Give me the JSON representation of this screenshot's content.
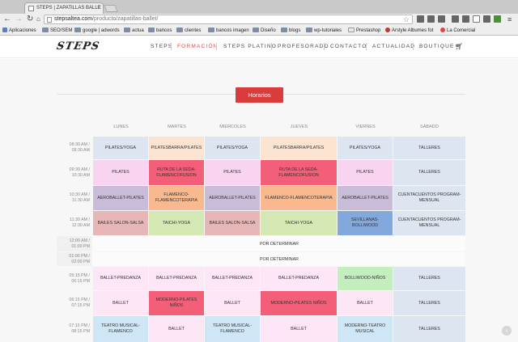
{
  "browser": {
    "tab_title": "STEPS | ZAPATILLAS BALLE",
    "url_host": "stepsaltea.com",
    "url_path": "/producto/zapatillas-ballet/",
    "bookmarks": [
      "Aplicaciones",
      "SEO/SEM",
      "google | adwords",
      "actua",
      "bancos",
      "clientes",
      "bancos imagen",
      "Diseño",
      "blogs",
      "wp-tutoriales",
      "Prestashop",
      "Arstyle Albumes fot",
      "La Comercial"
    ]
  },
  "site": {
    "logo": "STEPS",
    "nav": [
      "STEPS",
      "FORMACIÓN",
      "STEPS PLATINO",
      "PROFESORADO",
      "CONTACTO",
      "ACTUALIDAD",
      "BOUTIQUE"
    ],
    "active_nav": "FORMACIÓN",
    "schedule_button": "Horarios"
  },
  "schedule": {
    "days": [
      "LUNES",
      "MARTES",
      "MIERCOLES",
      "JUEVES",
      "VIERNES",
      "SÁBADO"
    ],
    "slots": [
      {
        "time": [
          "08:30 AM /",
          "09:30 AM"
        ],
        "cells": [
          {
            "t": "PILATES/YOGA",
            "c": "#dde6f0"
          },
          {
            "t": "PILATESBARRA/PILATES",
            "c": "#fce4d0"
          },
          {
            "t": "PILATES/YOGA",
            "c": "#dde6f0"
          },
          {
            "t": "PILATESBARRA/PILATES",
            "c": "#fce4d0"
          },
          {
            "t": "PILATES/YOGA",
            "c": "#dde6f0"
          },
          {
            "t": "TALLERES",
            "c": "#dde6f0"
          }
        ]
      },
      {
        "time": [
          "09:30 AM /",
          "10:30 AM"
        ],
        "cells": [
          {
            "t": "PILATES",
            "c": "#f9d4f0"
          },
          {
            "t": "RUTA DE LA SEDA-FLAMENCOFUSION",
            "c": "#f35f78"
          },
          {
            "t": "PILATES",
            "c": "#f9d4f0"
          },
          {
            "t": "RUTA DE LA SEDA-FLAMENCOFUSION",
            "c": "#f35f78"
          },
          {
            "t": "PILATES",
            "c": "#f9d4f0"
          },
          {
            "t": "TALLERES",
            "c": "#dde6f0"
          }
        ]
      },
      {
        "time": [
          "10:30 AM /",
          "11:30 AM"
        ],
        "cells": [
          {
            "t": "AEROBALLET-PILATES",
            "c": "#c8bcd9"
          },
          {
            "t": "FLAMENCO-FLAMENCOTERAPIA",
            "c": "#f9b98f"
          },
          {
            "t": "AEROBALLET-PILATES",
            "c": "#c8bcd9"
          },
          {
            "t": "FLAMENCO-FLAMENCOTERAPIA",
            "c": "#f9b98f"
          },
          {
            "t": "AEROBALLET-PILATES",
            "c": "#c8bcd9"
          },
          {
            "t": "CUENTACUENTOS PROGRAM-MENSUAL",
            "c": "#dde6f0"
          }
        ]
      },
      {
        "time": [
          "11:30 AM /",
          "12:30 AM"
        ],
        "cells": [
          {
            "t": "BAILES SALON-SALSA",
            "c": "#e7b6b6"
          },
          {
            "t": "TAICHI-YOGA",
            "c": "#d4e8b4"
          },
          {
            "t": "BAILES SALON-SALSA",
            "c": "#e7b6b6"
          },
          {
            "t": "TAICHI-YOGA",
            "c": "#d4e8b4"
          },
          {
            "t": "SEVILLANAS-BOLLIWOOD",
            "c": "#83a8db"
          },
          {
            "t": "CUENTACUENTOS PROGRAM-MENSUAL",
            "c": "#dde6f0"
          }
        ]
      },
      {
        "time": [
          "12:00 AM /",
          "01:00 PM"
        ],
        "wide": "POR DETERMINAR"
      },
      {
        "time": [
          "01:00 PM /",
          "02:00 PM"
        ],
        "wide": "POR DETERMINAR"
      },
      {
        "time": [
          "05:15 PM /",
          "06:15 PM"
        ],
        "cells": [
          {
            "t": "BALLET-PREDANZA",
            "c": "#fde6f6"
          },
          {
            "t": "BALLET-PREDANZA",
            "c": "#fde6f6"
          },
          {
            "t": "BALLET-PREDANZA",
            "c": "#fde6f6"
          },
          {
            "t": "BALLET-PREDANZA",
            "c": "#fde6f6"
          },
          {
            "t": "BOLLIWOOD-NIÑOS",
            "c": "#c2efbd"
          },
          {
            "t": "TALLERES",
            "c": "#dde6f0"
          }
        ]
      },
      {
        "time": [
          "06:15 PM /",
          "07:15 PM"
        ],
        "cells": [
          {
            "t": "BALLET",
            "c": "#fde6f6"
          },
          {
            "t": "MODERNO-PILATES NIÑOS",
            "c": "#f35f78"
          },
          {
            "t": "BALLET",
            "c": "#fde6f6"
          },
          {
            "t": "MODERNO-PILATES NIÑOS",
            "c": "#f35f78"
          },
          {
            "t": "BALLET",
            "c": "#fde6f6"
          },
          {
            "t": "TALLERES",
            "c": "#dde6f0"
          }
        ]
      },
      {
        "time": [
          "07:15 PM /",
          "08:15 PM"
        ],
        "cells": [
          {
            "t": "TEATRO MUSICAL-FLAMENCO",
            "c": "#cfe6f7"
          },
          {
            "t": "BALLET",
            "c": "#fde6f6"
          },
          {
            "t": "TEATRO MUSICAL-FLAMENCO",
            "c": "#cfe6f7"
          },
          {
            "t": "BALLET",
            "c": "#fde6f6"
          },
          {
            "t": "MODERNO-TEATRO MUSICAL",
            "c": "#cfe6f7"
          },
          {
            "t": "TALLERES",
            "c": "#dde6f0"
          }
        ]
      }
    ]
  }
}
